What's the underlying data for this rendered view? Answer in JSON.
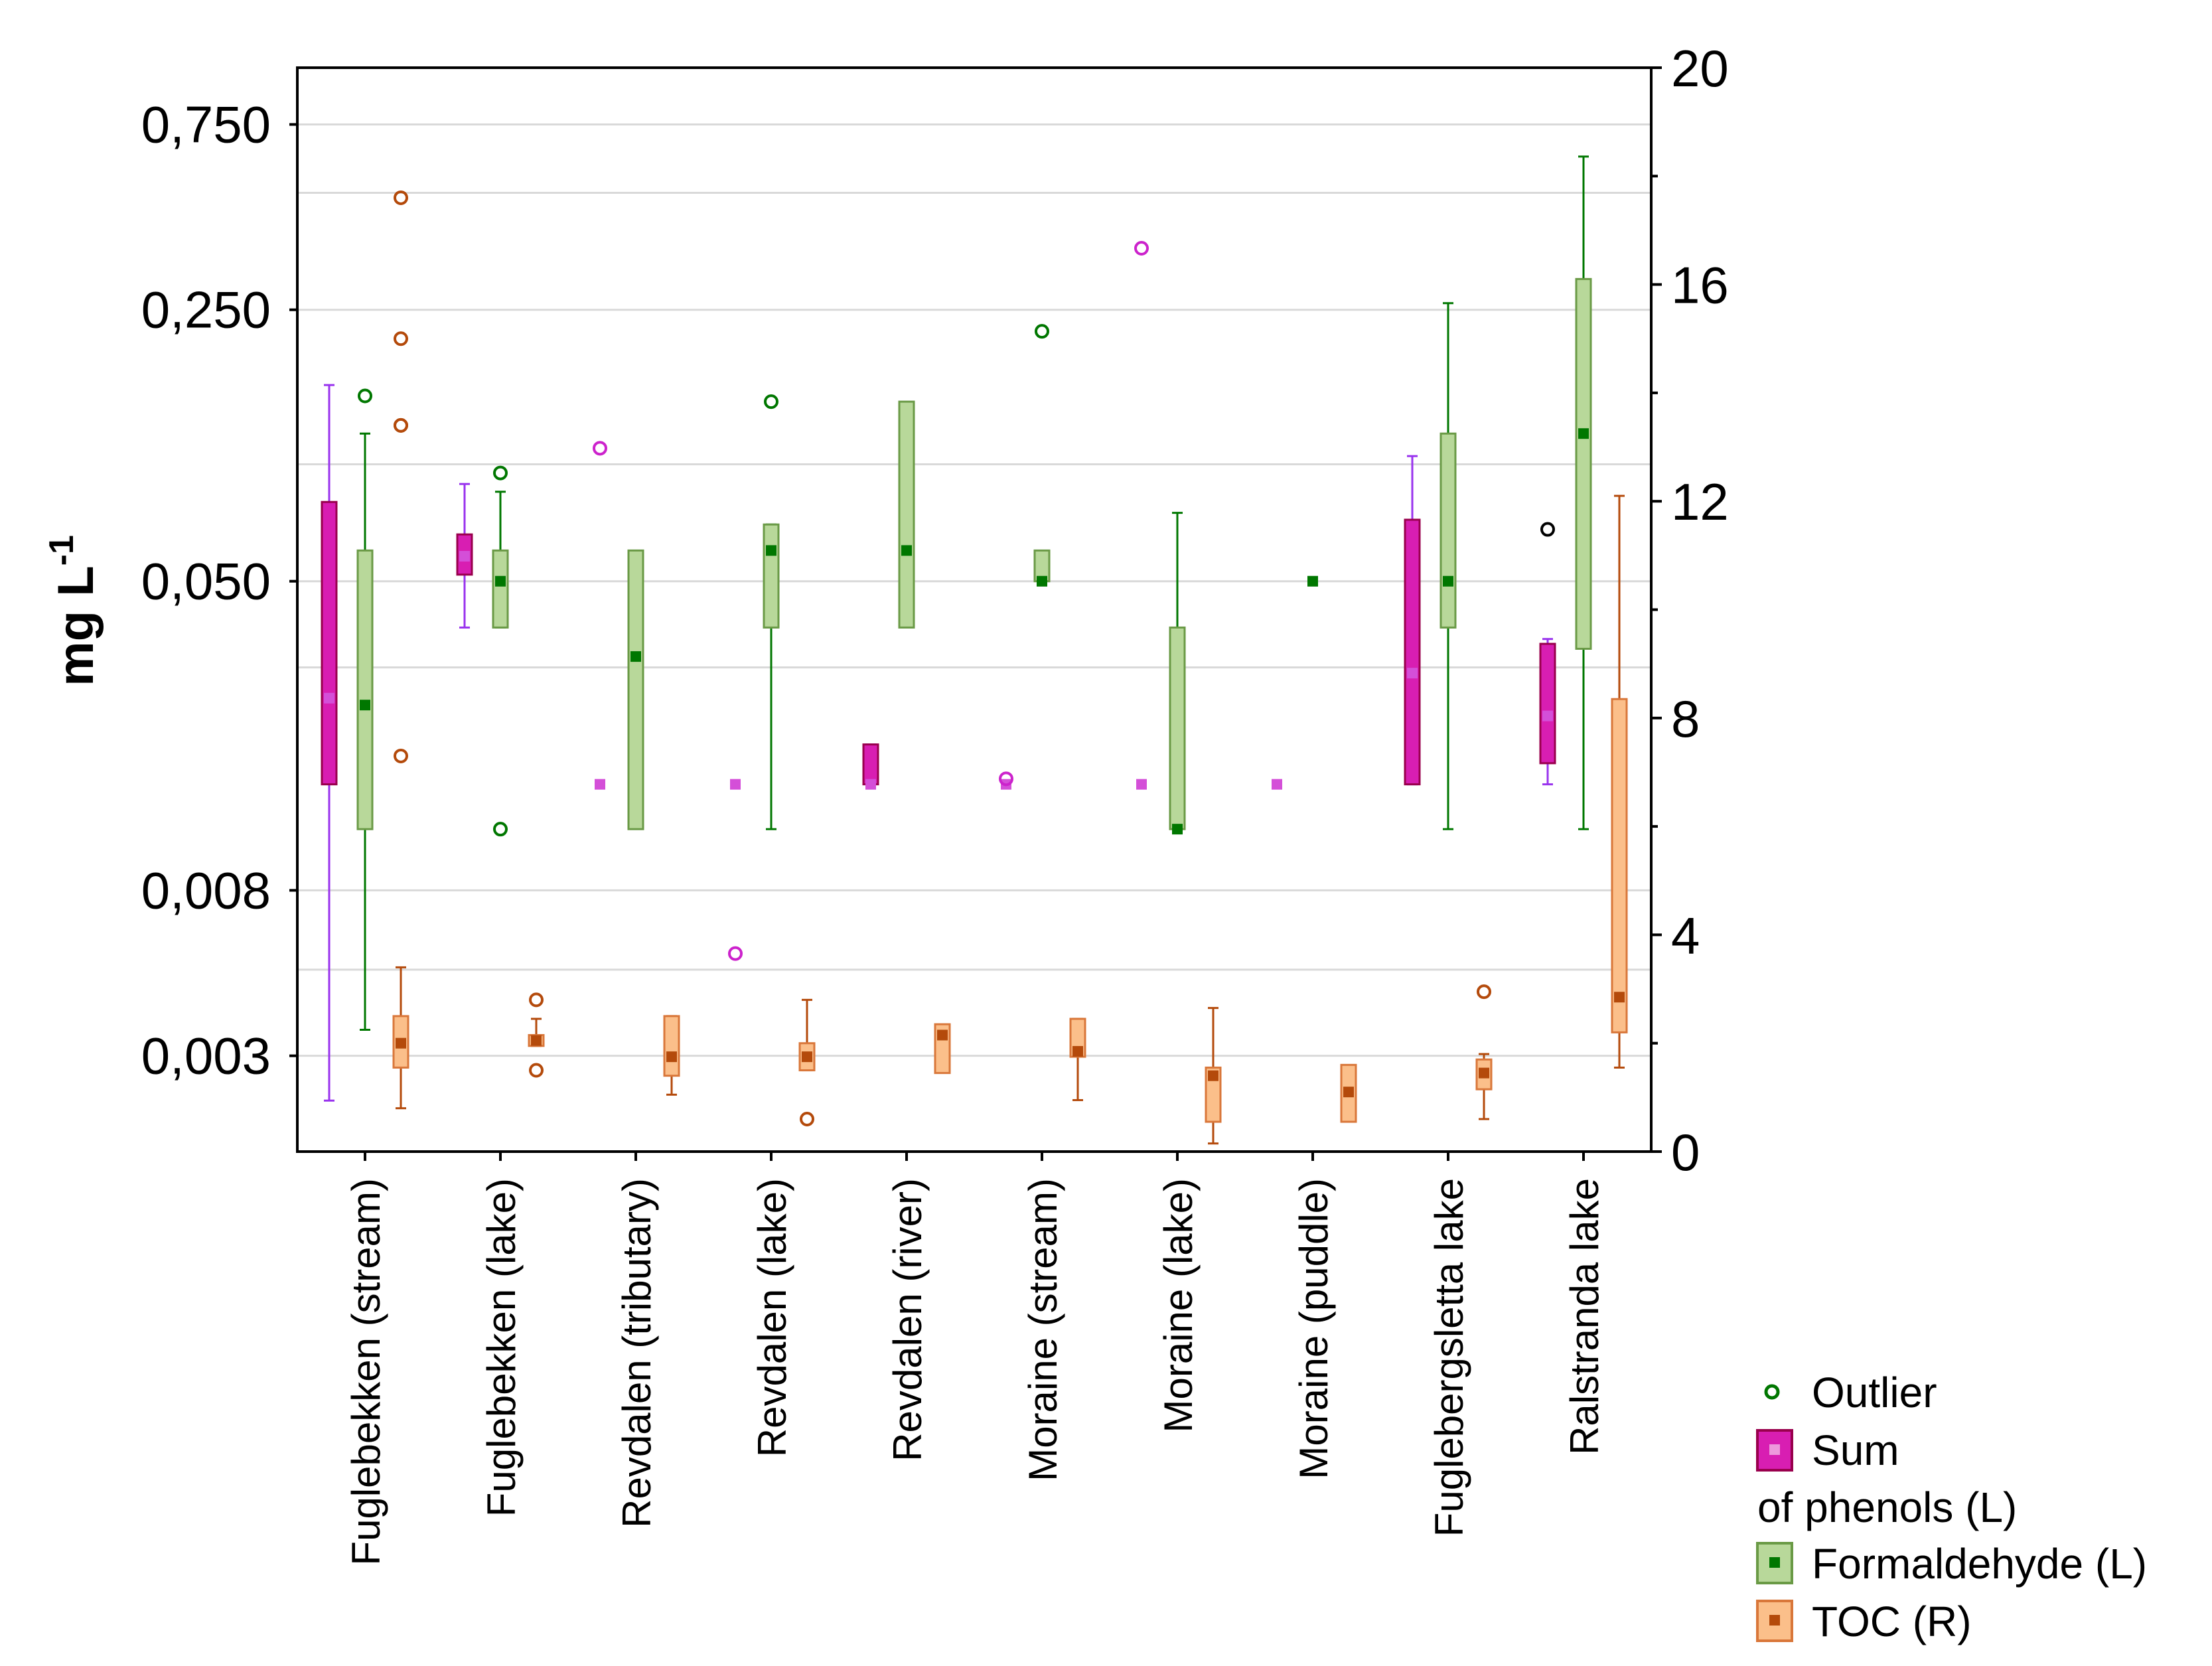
{
  "chart_data": {
    "type": "boxplot",
    "ylabel_left": "mg L",
    "ylabel_left_superscript": "-1",
    "y_left_scale": "log",
    "y_left_ticks": [
      "0,750",
      "0,250",
      "0,050",
      "0,008",
      "0,003"
    ],
    "y_left_tick_values": [
      0.75,
      0.25,
      0.05,
      0.008,
      0.003
    ],
    "y_left_gridlines": [
      0.75,
      0.5,
      0.25,
      0.1,
      0.05,
      0.03,
      0.008,
      0.005,
      0.003
    ],
    "y_left_range": [
      0.0017,
      1.05
    ],
    "y_right_ticks": [
      "20",
      "16",
      "12",
      "8",
      "4",
      "0"
    ],
    "y_right_tick_values": [
      20,
      16,
      12,
      8,
      4,
      0
    ],
    "y_right_range": [
      0,
      20
    ],
    "categories": [
      "Fuglebekken (stream)",
      "Fuglebekken (lake)",
      "Revdalen (tributary)",
      "Revdalen (lake)",
      "Revdalen (river)",
      "Moraine (stream)",
      "Moraine (lake)",
      "Moraine (puddle)",
      "Fuglebergsletta lake",
      "Ralstranda lake"
    ],
    "series": [
      {
        "name": "Sum of phenols",
        "axis": "left",
        "color": "#cc22cc",
        "box_fill": "#d81eb2",
        "box_edge": "#99004d",
        "whisker_color": "#9933ee",
        "outlier_color": "#cc22cc",
        "items": [
          {
            "min": 0.0023,
            "q1": 0.015,
            "median": 0.025,
            "q3": 0.08,
            "max": 0.16,
            "outliers": []
          },
          {
            "min": 0.038,
            "q1": 0.052,
            "median": 0.058,
            "q3": 0.066,
            "max": 0.089,
            "outliers": []
          },
          {
            "min": null,
            "q1": null,
            "median": 0.015,
            "q3": null,
            "max": null,
            "outliers": [
              0.11
            ]
          },
          {
            "min": null,
            "q1": null,
            "median": 0.015,
            "q3": null,
            "max": null,
            "outliers": [
              0.0055
            ]
          },
          {
            "min": 0.015,
            "q1": 0.015,
            "median": 0.015,
            "q3": 0.019,
            "max": 0.019,
            "outliers": []
          },
          {
            "min": null,
            "q1": null,
            "median": 0.015,
            "q3": null,
            "max": null,
            "outliers": [
              0.0155
            ]
          },
          {
            "min": null,
            "q1": null,
            "median": 0.015,
            "q3": null,
            "max": null,
            "outliers": [
              0.36
            ]
          },
          {
            "min": null,
            "q1": null,
            "median": 0.015,
            "q3": null,
            "max": null,
            "outliers": []
          },
          {
            "min": 0.015,
            "q1": 0.015,
            "median": 0.029,
            "q3": 0.072,
            "max": 0.105,
            "outliers": []
          },
          {
            "min": 0.015,
            "q1": 0.017,
            "median": 0.0225,
            "q3": 0.0345,
            "max": 0.0355,
            "outliers": []
          }
        ]
      },
      {
        "name": "Formaldehyde",
        "axis": "left",
        "color": "#007700",
        "box_fill": "#b8d89a",
        "box_edge": "#6a9a46",
        "whisker_color": "#007700",
        "outlier_color": "#007700",
        "items": [
          {
            "min": 0.0035,
            "q1": 0.0115,
            "median": 0.024,
            "q3": 0.06,
            "max": 0.12,
            "outliers": [
              0.15
            ]
          },
          {
            "min": 0.038,
            "q1": 0.038,
            "median": 0.05,
            "q3": 0.06,
            "max": 0.085,
            "outliers": [
              0.095,
              0.0115
            ]
          },
          {
            "min": null,
            "q1": 0.0115,
            "median": 0.032,
            "q3": 0.06,
            "max": null,
            "outliers": []
          },
          {
            "min": 0.0115,
            "q1": 0.038,
            "median": 0.06,
            "q3": 0.07,
            "max": 0.07,
            "outliers": [
              0.145
            ]
          },
          {
            "min": null,
            "q1": 0.038,
            "median": 0.06,
            "q3": 0.145,
            "max": null,
            "outliers": []
          },
          {
            "min": null,
            "q1": 0.05,
            "median": 0.05,
            "q3": 0.06,
            "max": null,
            "outliers": [
              0.22
            ]
          },
          {
            "min": 0.0115,
            "q1": 0.0115,
            "median": 0.0115,
            "q3": 0.038,
            "max": 0.075,
            "outliers": []
          },
          {
            "min": null,
            "q1": null,
            "median": 0.05,
            "q3": null,
            "max": null,
            "outliers": []
          },
          {
            "min": 0.0115,
            "q1": 0.038,
            "median": 0.05,
            "q3": 0.12,
            "max": 0.26,
            "outliers": []
          },
          {
            "min": 0.0115,
            "q1": 0.0335,
            "median": 0.12,
            "q3": 0.3,
            "max": 0.62,
            "outliers": []
          }
        ]
      },
      {
        "name": "TOC",
        "axis": "right",
        "color": "#b44a0b",
        "box_fill": "#fbbf8a",
        "box_edge": "#d9773a",
        "whisker_color": "#b44a0b",
        "outlier_color": "#b44a0b",
        "items": [
          {
            "min": 0.8,
            "q1": 1.55,
            "median": 2.0,
            "q3": 2.5,
            "max": 3.4,
            "outliers": [
              17.6,
              15.0,
              13.4,
              13.4,
              7.3
            ]
          },
          {
            "min": 1.95,
            "q1": 1.95,
            "median": 2.05,
            "q3": 2.15,
            "max": 2.45,
            "outliers": [
              2.8,
              1.5
            ]
          },
          {
            "min": 1.05,
            "q1": 1.4,
            "median": 1.75,
            "q3": 2.5,
            "max": 2.5,
            "outliers": []
          },
          {
            "min": 1.5,
            "q1": 1.5,
            "median": 1.75,
            "q3": 2.0,
            "max": 2.8,
            "outliers": [
              0.6
            ]
          },
          {
            "min": null,
            "q1": 1.45,
            "median": 2.15,
            "q3": 2.35,
            "max": null,
            "outliers": []
          },
          {
            "min": 0.95,
            "q1": 1.75,
            "median": 1.85,
            "q3": 2.45,
            "max": 2.45,
            "outliers": []
          },
          {
            "min": 0.15,
            "q1": 0.55,
            "median": 1.4,
            "q3": 1.55,
            "max": 2.65,
            "outliers": []
          },
          {
            "min": null,
            "q1": 0.55,
            "median": 1.1,
            "q3": 1.6,
            "max": null,
            "outliers": []
          },
          {
            "min": 0.6,
            "q1": 1.15,
            "median": 1.45,
            "q3": 1.7,
            "max": 1.8,
            "outliers": [
              2.95
            ]
          },
          {
            "min": 1.55,
            "q1": 2.2,
            "median": 2.85,
            "q3": 8.35,
            "max": 12.1,
            "outliers": []
          }
        ]
      }
    ],
    "extra_outliers": [
      {
        "category": "Ralstranda lake",
        "axis": "left",
        "value": 0.068,
        "color": "#000000"
      }
    ]
  },
  "legend": {
    "outlier_label": "Outlier",
    "phenols_label_line1": "Sum",
    "phenols_label_line2": "of phenols (L)",
    "formaldehyde_label": "Formaldehyde (L)",
    "toc_label": "TOC (R)"
  }
}
